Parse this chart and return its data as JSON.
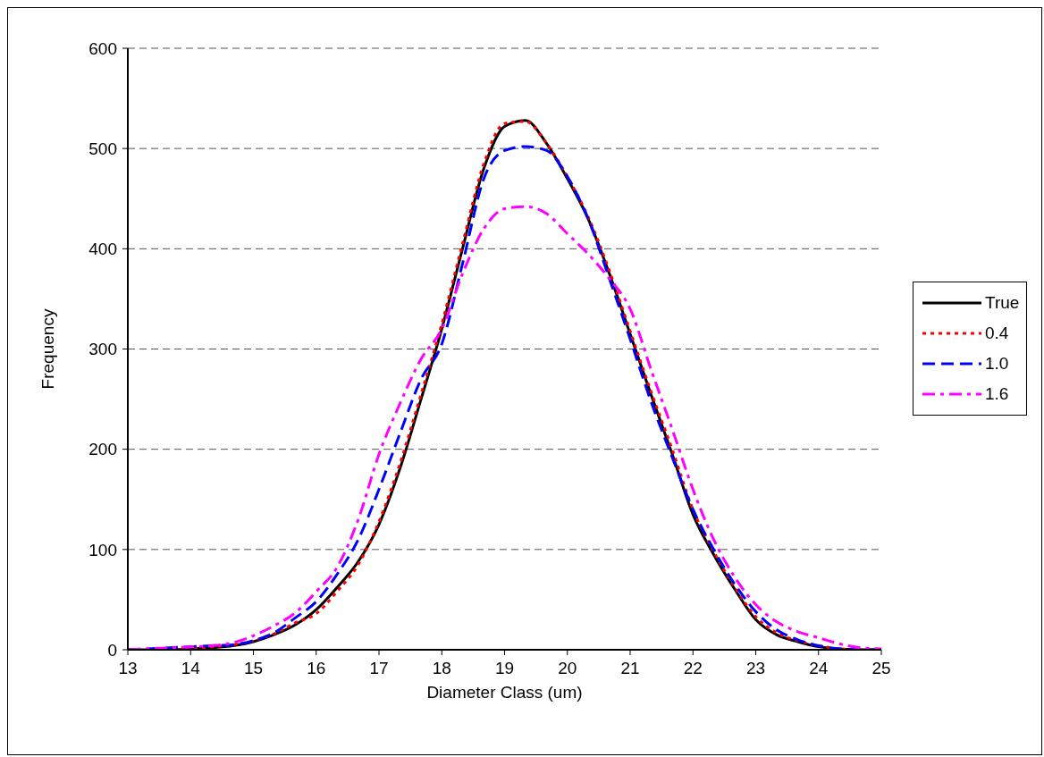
{
  "chart_data": {
    "type": "line",
    "xlabel": "Diameter Class (um)",
    "ylabel": "Frequency",
    "x": [
      13,
      13.33,
      13.67,
      14,
      14.33,
      14.67,
      15,
      15.33,
      15.67,
      16,
      16.33,
      16.67,
      17,
      17.33,
      17.67,
      18,
      18.33,
      18.67,
      19,
      19.33,
      19.67,
      20,
      20.33,
      20.67,
      21,
      21.33,
      21.67,
      22,
      22.33,
      22.67,
      23,
      23.33,
      23.67,
      24,
      24.33,
      24.67,
      25
    ],
    "series": [
      {
        "name": "True",
        "color": "#000000",
        "line_style": "solid",
        "values": [
          0,
          0,
          0,
          1,
          2,
          4,
          8,
          15,
          25,
          40,
          62,
          88,
          125,
          180,
          250,
          320,
          400,
          480,
          522,
          528,
          505,
          470,
          430,
          375,
          315,
          255,
          195,
          135,
          95,
          60,
          30,
          15,
          8,
          3,
          1,
          0,
          0
        ]
      },
      {
        "name": "0.4",
        "color": "#ff0000",
        "line_style": "dotted",
        "values": [
          null,
          null,
          0,
          1,
          3,
          5,
          9,
          16,
          27,
          36,
          58,
          85,
          128,
          185,
          255,
          325,
          405,
          485,
          525,
          527,
          505,
          472,
          432,
          378,
          318,
          258,
          200,
          140,
          98,
          62,
          33,
          17,
          9,
          4,
          1,
          0,
          0
        ]
      },
      {
        "name": "1.0",
        "color": "#0000ff",
        "line_style": "dashed",
        "values": [
          0,
          1,
          2,
          3,
          4,
          5,
          9,
          17,
          32,
          48,
          75,
          110,
          160,
          215,
          270,
          305,
          385,
          470,
          498,
          502,
          498,
          472,
          430,
          370,
          310,
          248,
          192,
          140,
          100,
          65,
          38,
          20,
          10,
          4,
          1,
          0,
          0
        ]
      },
      {
        "name": "1.6",
        "color": "#ff00ff",
        "line_style": "dashdot",
        "values": [
          0,
          1,
          2,
          3,
          4,
          7,
          14,
          24,
          37,
          58,
          82,
          130,
          195,
          245,
          290,
          320,
          375,
          420,
          440,
          442,
          435,
          415,
          395,
          370,
          340,
          280,
          220,
          160,
          110,
          72,
          45,
          28,
          18,
          12,
          6,
          2,
          1
        ]
      }
    ],
    "xlim": [
      13,
      25
    ],
    "xticks": [
      13,
      14,
      15,
      16,
      17,
      18,
      19,
      20,
      21,
      22,
      23,
      24,
      25
    ],
    "ylim": [
      0,
      600
    ],
    "yticks": [
      0,
      100,
      200,
      300,
      400,
      500,
      600
    ],
    "grid": "y",
    "legend": "right",
    "marker": "none"
  }
}
